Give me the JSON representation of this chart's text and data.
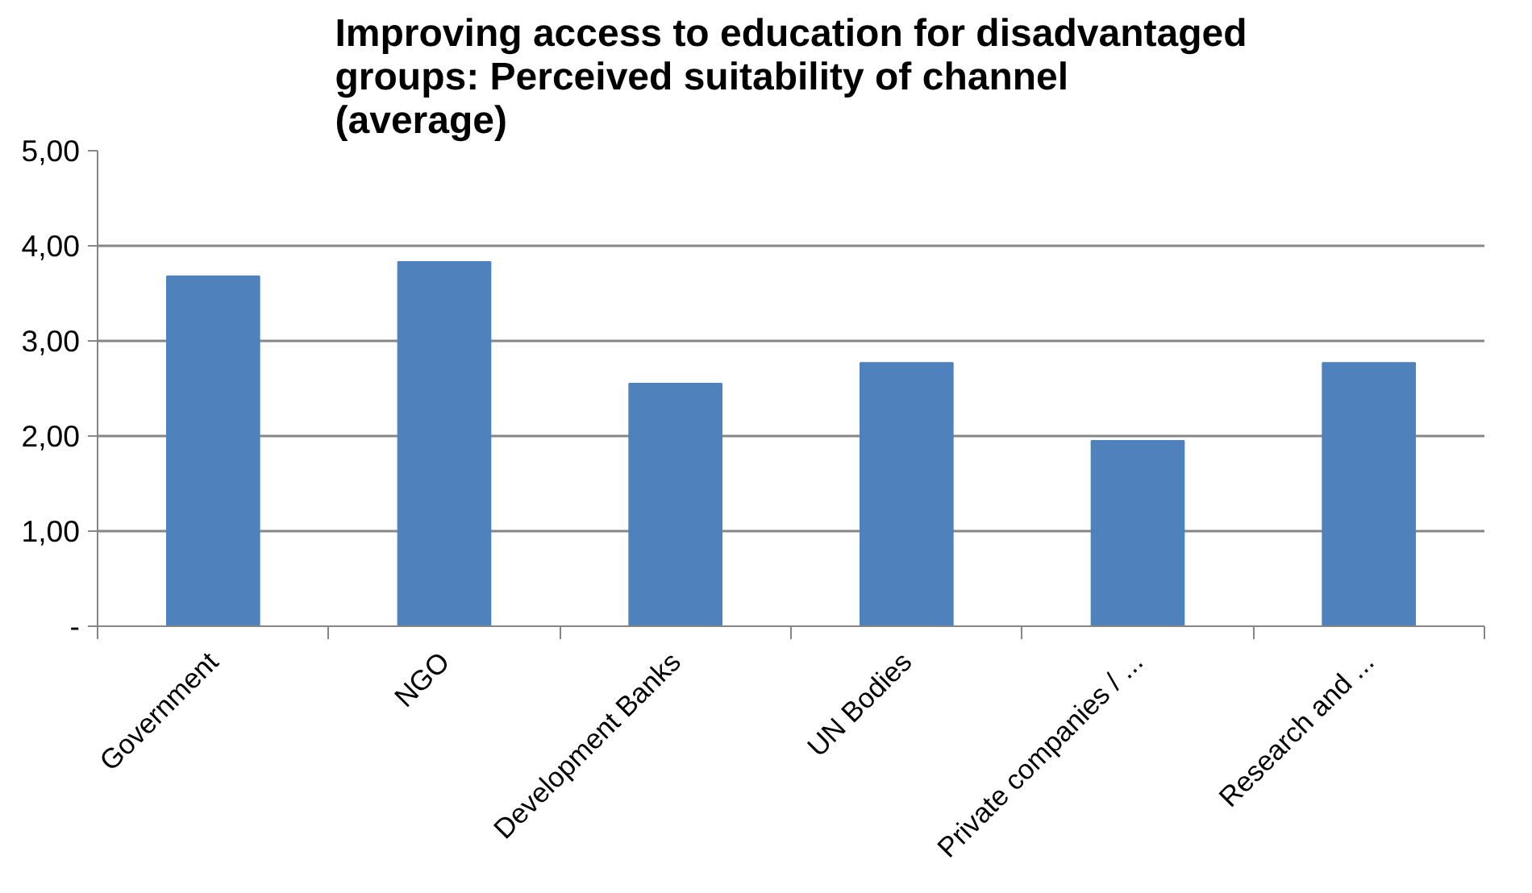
{
  "chart_data": {
    "type": "bar",
    "title": "Improving access to education for disadvantaged groups: Perceived suitability of channel  (average)",
    "categories": [
      "Government",
      "NGO",
      "Development Banks",
      "UN Bodies",
      "Private companies / ...",
      "Research and ..."
    ],
    "values": [
      3.68,
      3.83,
      2.55,
      2.77,
      1.95,
      2.77
    ],
    "color": "#4f81bd",
    "ylim": [
      0,
      5
    ],
    "yticks": [
      {
        "value": 0,
        "label": "-"
      },
      {
        "value": 1,
        "label": "1,00"
      },
      {
        "value": 2,
        "label": "2,00"
      },
      {
        "value": 3,
        "label": "3,00"
      },
      {
        "value": 4,
        "label": "4,00"
      },
      {
        "value": 5,
        "label": "5,00"
      }
    ],
    "grid": "y"
  }
}
